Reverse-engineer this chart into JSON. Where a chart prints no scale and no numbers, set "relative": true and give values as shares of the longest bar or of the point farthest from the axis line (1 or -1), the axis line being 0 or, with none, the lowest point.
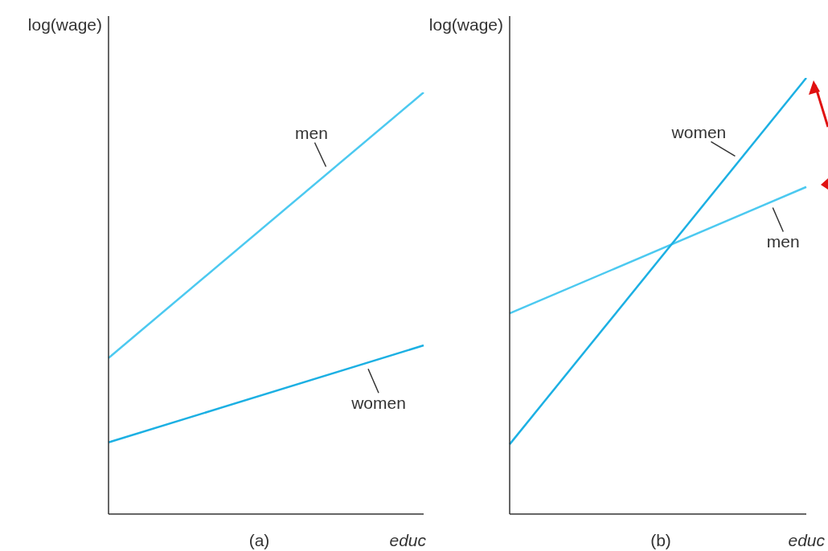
{
  "chart_data": [
    {
      "type": "line",
      "title": "(a)",
      "xlabel": "educ",
      "ylabel": "log(wage)",
      "relative": true,
      "categories": [
        null,
        null
      ],
      "series": [
        {
          "name": "men",
          "color": "#4cc9f0",
          "values": [
            0.37,
            1
          ]
        },
        {
          "name": "women",
          "color": "#1cb0e3",
          "values": [
            0.17,
            0.4
          ]
        }
      ]
    },
    {
      "type": "line",
      "title": "(b)",
      "xlabel": "educ",
      "ylabel": "log(wage)",
      "relative": true,
      "categories": [
        null,
        null
      ],
      "series": [
        {
          "name": "men",
          "color": "#4cc9f0",
          "values": [
            0.46,
            0.75
          ]
        },
        {
          "name": "women",
          "color": "#1cb0e3",
          "values": [
            0.16,
            1
          ]
        }
      ]
    }
  ]
}
